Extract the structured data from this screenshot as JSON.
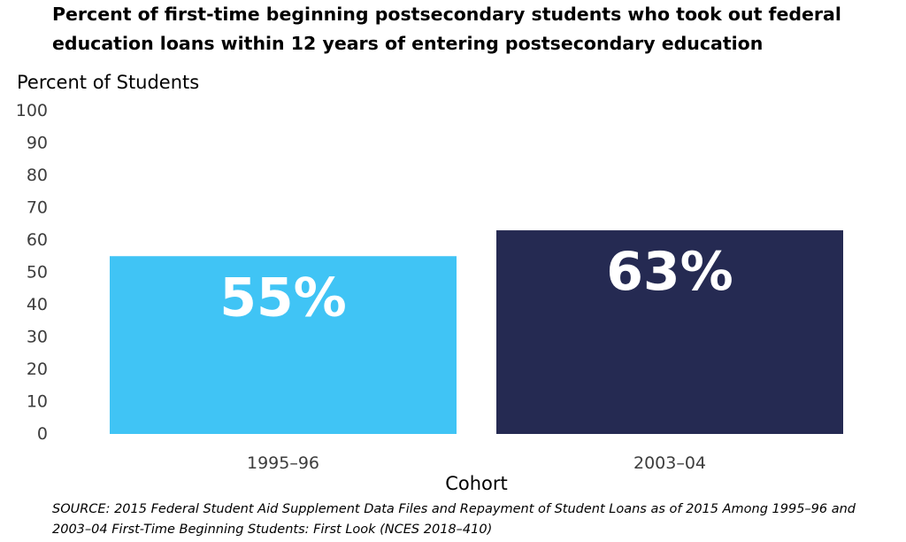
{
  "chart_data": {
    "type": "bar",
    "title": "Percent of first-time beginning postsecondary students who took out federal education loans within 12 years of entering postsecondary education",
    "ylabel": "Percent of Students",
    "xlabel": "Cohort",
    "categories": [
      "1995–96",
      "2003–04"
    ],
    "values": [
      55,
      63
    ],
    "data_labels": [
      "55%",
      "63%"
    ],
    "colors": [
      "#40c4f5",
      "#252a52"
    ],
    "ylim": [
      0,
      100
    ],
    "yticks": [
      0,
      10,
      20,
      30,
      40,
      50,
      60,
      70,
      80,
      90,
      100
    ],
    "grid": false,
    "legend": "none"
  },
  "source": "SOURCE: 2015 Federal Student Aid Supplement Data Files and Repayment of Student Loans as of 2015 Among 1995–96 and 2003–04 First-Time Beginning Students: First Look (NCES 2018–410)"
}
